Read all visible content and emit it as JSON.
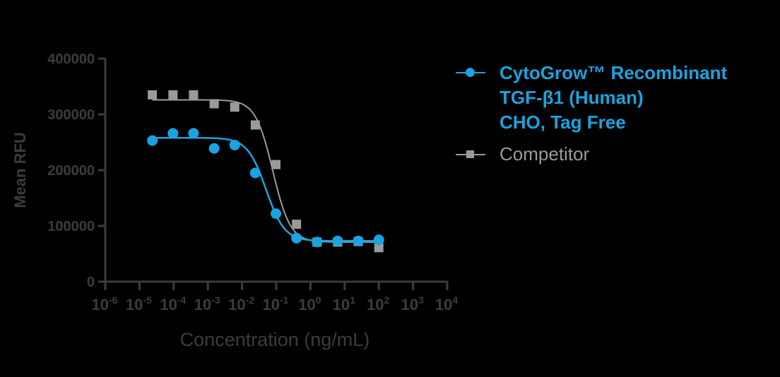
{
  "chart_data": {
    "type": "scatter",
    "title": "",
    "xlabel": "Concentration (ng/mL)",
    "ylabel": "Mean RFU",
    "xscale": "log",
    "xlim": [
      1e-06,
      10000.0
    ],
    "ylim": [
      0,
      400000
    ],
    "x_ticks": [
      "10^-6",
      "10^-5",
      "10^-4",
      "10^-3",
      "10^-2",
      "10^-1",
      "10^0",
      "10^1",
      "10^2",
      "10^3",
      "10^4"
    ],
    "y_ticks": [
      "0",
      "100000",
      "200000",
      "300000",
      "400000"
    ],
    "grid": false,
    "legend_position": "right",
    "series": [
      {
        "name": "CytoGrow™ Recombinant TGF-β1 (Human) CHO, Tag Free",
        "marker": "circle",
        "color": "#1aa3e0",
        "x": [
          2.38e-05,
          9.54e-05,
          0.000381,
          0.00153,
          0.0061,
          0.0244,
          0.0977,
          0.391,
          1.56,
          6.25,
          25,
          100
        ],
        "y": [
          253000,
          266000,
          266000,
          239000,
          245000,
          195000,
          122000,
          78000,
          71000,
          73000,
          73000,
          75000
        ],
        "fit": {
          "top": 258000,
          "bottom": 73000,
          "log_ec50": -1.3,
          "hill": 1.6
        }
      },
      {
        "name": "Competitor",
        "marker": "square",
        "color": "#9a9a9a",
        "x": [
          2.38e-05,
          9.54e-05,
          0.000381,
          0.00153,
          0.0061,
          0.0244,
          0.0977,
          0.391,
          1.56,
          6.25,
          25,
          100
        ],
        "y": [
          335000,
          335000,
          335000,
          319000,
          313000,
          281000,
          210000,
          103000,
          71000,
          71000,
          72000,
          61000
        ],
        "fit": {
          "top": 326000,
          "bottom": 71000,
          "log_ec50": -1.1,
          "hill": 1.7
        }
      }
    ]
  },
  "legend": {
    "items": [
      {
        "lines": [
          "CytoGrow™ Recombinant",
          "TGF-β1 (Human)",
          "CHO, Tag Free"
        ],
        "color": "#1aa3e0"
      },
      {
        "lines": [
          "Competitor"
        ],
        "color": "#9a9a9a"
      }
    ]
  },
  "colors": {
    "axis": "#3c3c3c",
    "tick_label": "#3c3c3c",
    "axis_title": "#3c3c3c"
  }
}
